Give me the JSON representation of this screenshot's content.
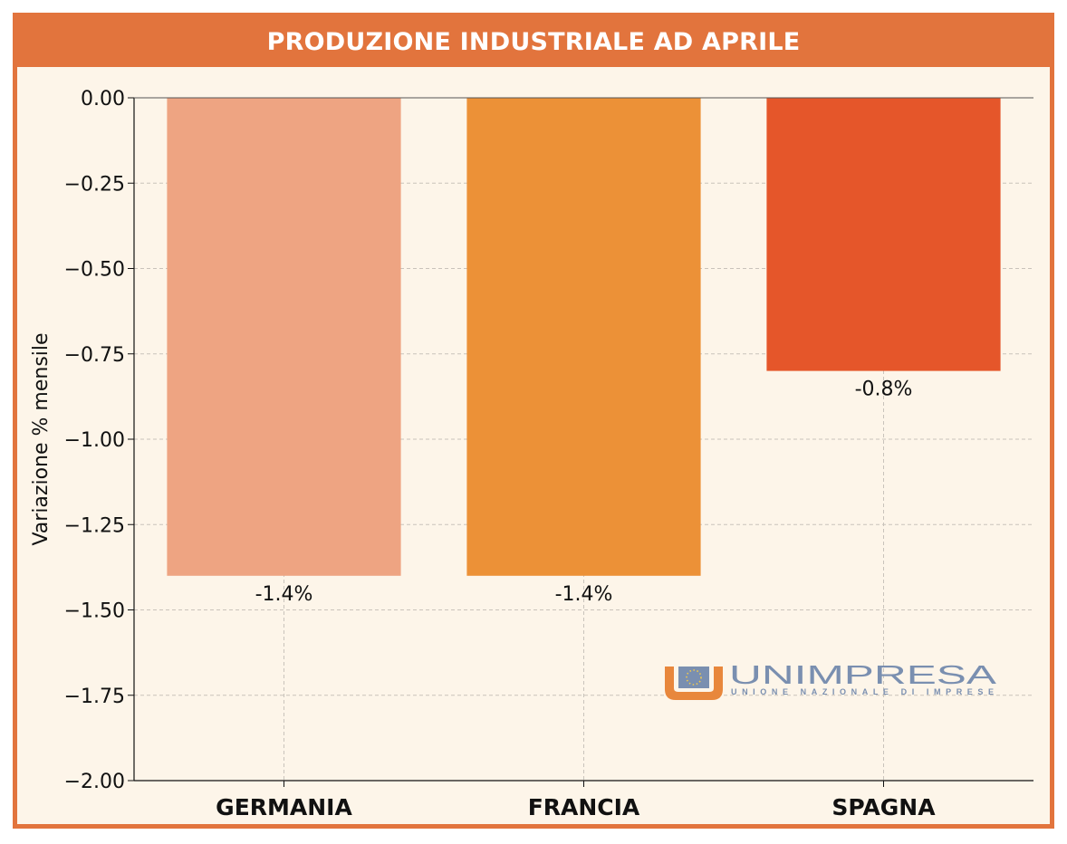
{
  "header": {
    "title": "PRODUZIONE INDUSTRIALE AD APRILE"
  },
  "logo": {
    "name": "UNIMPRESA",
    "tagline": "UNIONE NAZIONALE DI IMPRESE"
  },
  "chart_data": {
    "type": "bar",
    "title": "PRODUZIONE INDUSTRIALE AD APRILE",
    "xlabel": "",
    "ylabel": "Variazione % mensile",
    "categories": [
      "GERMANIA",
      "FRANCIA",
      "SPAGNA"
    ],
    "values": [
      -1.4,
      -1.4,
      -0.8
    ],
    "data_labels": [
      "-1.4%",
      "-1.4%",
      "-0.8%"
    ],
    "colors": [
      "#eea482",
      "#ec9137",
      "#e5562a"
    ],
    "ylim": [
      -2.0,
      0.0
    ],
    "yticks": [
      0.0,
      -0.25,
      -0.5,
      -0.75,
      -1.0,
      -1.25,
      -1.5,
      -1.75,
      -2.0
    ],
    "ytick_labels": [
      "0.00",
      "−0.25",
      "−0.50",
      "−0.75",
      "−1.00",
      "−1.25",
      "−1.50",
      "−1.75",
      "−2.00"
    ],
    "grid": true,
    "legend": "none"
  }
}
